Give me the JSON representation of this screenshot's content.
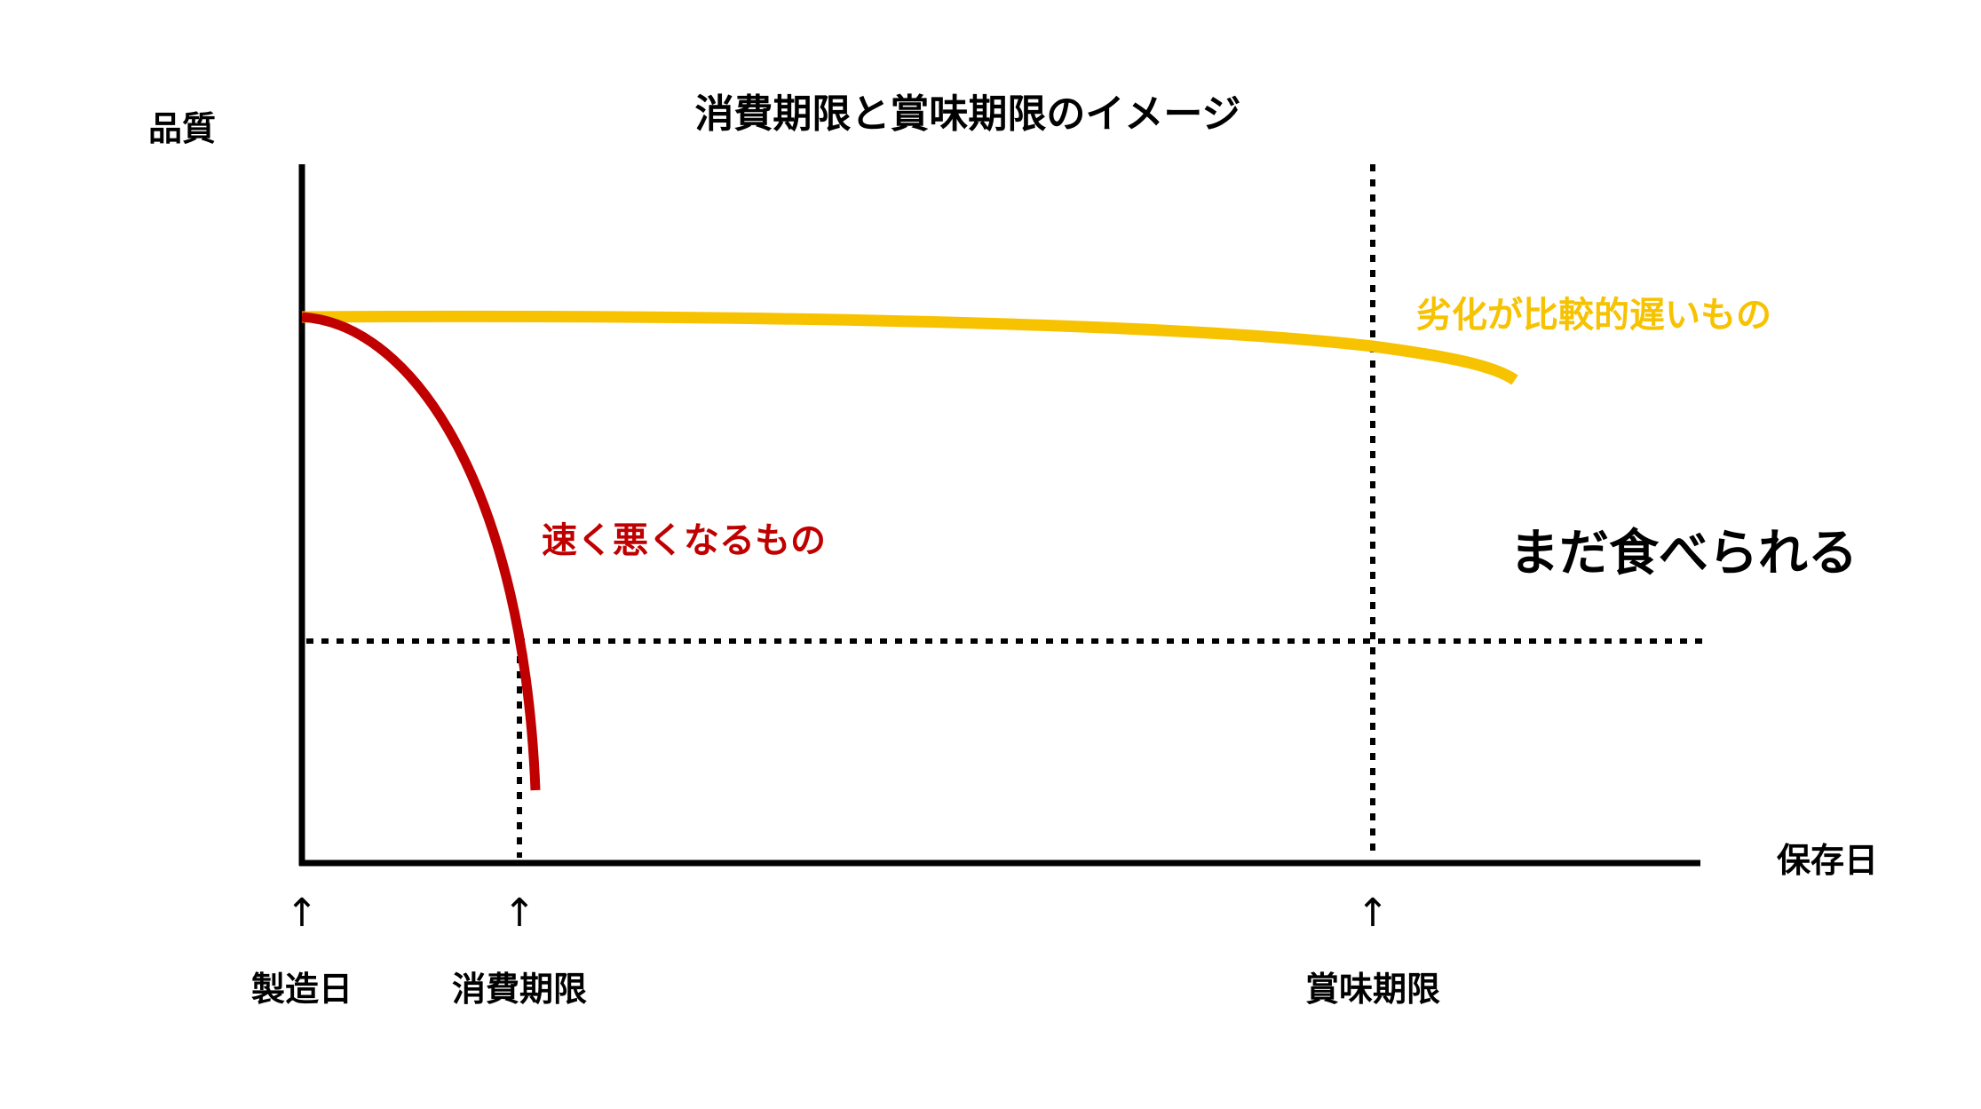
{
  "title": "消費期限と賞味期限のイメージ",
  "axes": {
    "y_label": "品質",
    "x_label": "保存日"
  },
  "curves": {
    "slow": {
      "label": "劣化が比較的遅いもの",
      "color": "#f7c200"
    },
    "fast": {
      "label": "速く悪くなるもの",
      "color": "#c00000"
    }
  },
  "still_edible": "まだ食べられる",
  "markers": {
    "arrow": "↑",
    "production": "製造日",
    "use_by": "消費期限",
    "best_before": "賞味期限"
  },
  "colors": {
    "axis": "#000000",
    "text": "#000000"
  }
}
